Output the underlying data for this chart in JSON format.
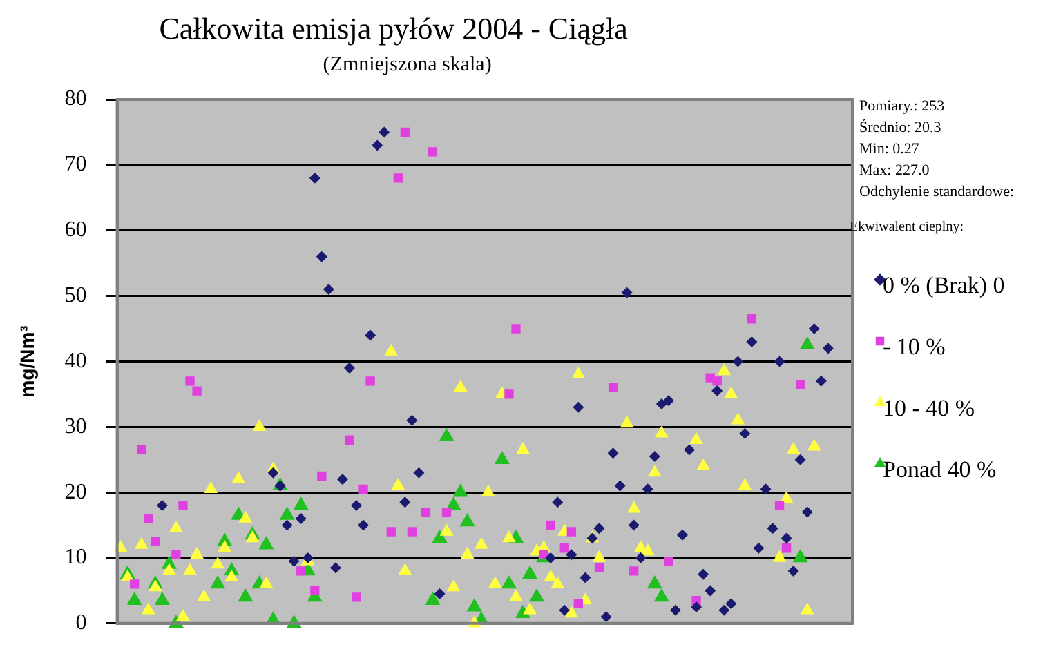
{
  "chart_data": {
    "type": "scatter",
    "title": "Całkowita emisja pyłów 2004 - Ciągła",
    "subtitle": "(Zmniejszona skala)",
    "ylabel": "mg/Nm³",
    "legend_title": "Ekwiwalent cieplny:",
    "legend": "right",
    "grid": "y",
    "tick_labels": "y",
    "annotations": [
      "Pomiary.: 253",
      "Średnio: 20.3",
      "Min: 0.27",
      "Max: 227.0",
      "Odchylenie standardowe:"
    ],
    "categories": [
      null,
      null,
      null,
      null,
      null,
      null,
      null,
      null,
      null,
      null,
      null,
      null,
      null,
      null,
      null,
      null,
      null,
      null,
      null,
      null,
      null,
      null,
      null,
      null,
      null,
      null,
      null,
      null,
      null,
      null,
      null,
      null,
      null,
      null,
      null,
      null,
      null,
      null,
      null,
      null,
      null,
      null,
      null,
      null,
      null,
      null,
      null,
      null,
      null,
      null,
      null,
      null,
      null,
      null,
      null,
      null,
      null,
      null,
      null,
      null,
      null,
      null,
      null,
      null,
      null,
      null,
      null,
      null,
      null,
      null,
      null,
      null,
      null,
      null,
      null,
      null,
      null,
      null,
      null,
      null,
      null,
      null,
      null,
      null,
      null,
      null,
      null,
      null,
      null,
      null,
      null,
      null,
      null,
      null,
      null,
      null,
      null,
      null,
      null,
      null,
      null,
      null,
      null,
      null,
      null,
      null
    ],
    "ylim": [
      0,
      80
    ],
    "yticks": [
      0,
      10,
      20,
      30,
      40,
      50,
      60,
      70,
      80
    ],
    "series": [
      {
        "name": "0 % (Brak) 0",
        "color": "#1a1a6e",
        "marker": "diamond",
        "values": [
          null,
          null,
          null,
          null,
          null,
          null,
          18,
          null,
          null,
          null,
          null,
          null,
          null,
          null,
          null,
          null,
          null,
          null,
          null,
          null,
          null,
          null,
          23,
          21,
          15,
          9.5,
          16,
          10,
          68,
          56,
          51,
          8.5,
          22,
          39,
          18,
          15,
          44,
          73,
          75,
          null,
          null,
          18.5,
          31,
          23,
          null,
          null,
          4.5,
          null,
          null,
          null,
          null,
          null,
          null,
          null,
          null,
          null,
          null,
          null,
          null,
          null,
          null,
          null,
          10,
          18.5,
          2,
          10.5,
          33,
          7,
          13,
          14.5,
          1,
          26,
          21,
          50.5,
          15,
          10,
          20.5,
          25.5,
          33.5,
          34,
          2,
          13.5,
          26.5,
          2.5,
          7.5,
          5,
          35.5,
          2,
          3,
          40,
          29,
          43,
          11.5,
          20.5,
          14.5,
          40,
          13,
          8,
          25,
          17,
          45,
          37,
          42,
          null,
          null,
          null
        ]
      },
      {
        "name": "- 10 %",
        "color": "#e040e0",
        "marker": "square",
        "values": [
          null,
          null,
          6,
          26.5,
          16,
          12.5,
          null,
          null,
          10.5,
          18,
          37,
          35.5,
          null,
          null,
          null,
          null,
          null,
          null,
          null,
          null,
          null,
          null,
          null,
          null,
          null,
          null,
          8,
          null,
          5,
          22.5,
          null,
          null,
          null,
          28,
          4,
          20.5,
          37,
          null,
          null,
          14,
          68,
          75,
          14,
          null,
          17,
          72,
          null,
          17,
          null,
          null,
          null,
          null,
          null,
          null,
          null,
          null,
          35,
          45,
          null,
          null,
          null,
          10.5,
          15,
          null,
          11.5,
          14,
          3,
          null,
          null,
          8.5,
          null,
          36,
          null,
          null,
          8,
          null,
          null,
          null,
          null,
          9.5,
          null,
          null,
          null,
          3.5,
          null,
          37.5,
          37,
          null,
          null,
          null,
          null,
          46.5,
          null,
          null,
          null,
          18,
          11.5,
          null,
          36.5,
          null,
          null,
          null,
          null,
          null,
          null,
          null
        ]
      },
      {
        "name": "10 - 40 %",
        "color": "#ffff40",
        "marker": "triangle",
        "values": [
          11.5,
          7,
          null,
          12,
          2,
          5.5,
          null,
          8,
          14.5,
          1,
          8,
          10.5,
          4,
          20.5,
          9,
          11.5,
          7,
          22,
          16,
          13,
          30,
          6,
          23.5,
          null,
          null,
          null,
          null,
          9.5,
          null,
          null,
          null,
          null,
          null,
          null,
          null,
          null,
          null,
          null,
          null,
          41.5,
          21,
          8,
          null,
          null,
          null,
          null,
          null,
          14,
          5.5,
          36,
          10.5,
          0,
          12,
          20,
          6,
          35,
          13,
          4,
          26.5,
          2,
          11,
          11.5,
          7,
          6,
          14,
          1.5,
          38,
          3.5,
          13,
          10,
          null,
          null,
          null,
          30.5,
          17.5,
          11.5,
          11,
          23,
          29,
          null,
          null,
          null,
          null,
          28,
          24,
          null,
          null,
          38.5,
          35,
          31,
          21,
          null,
          null,
          null,
          null,
          10,
          19,
          26.5,
          null,
          2,
          27,
          null,
          null,
          null,
          null,
          null
        ]
      },
      {
        "name": "Ponad 40 %",
        "color": "#20c020",
        "marker": "triangle",
        "values": [
          null,
          7.5,
          3.5,
          null,
          null,
          6,
          3.5,
          9,
          0,
          null,
          null,
          null,
          null,
          null,
          6,
          12.5,
          8,
          16.5,
          4,
          13.5,
          6,
          12,
          0.5,
          21,
          16.5,
          0,
          18,
          8,
          4,
          null,
          null,
          null,
          null,
          null,
          null,
          null,
          null,
          null,
          null,
          null,
          null,
          null,
          null,
          null,
          null,
          3.5,
          13,
          28.5,
          18,
          20,
          15.5,
          2.5,
          0.5,
          null,
          null,
          25,
          6,
          13,
          1.5,
          7.5,
          4,
          10,
          null,
          null,
          null,
          null,
          null,
          null,
          null,
          null,
          null,
          null,
          null,
          null,
          null,
          null,
          null,
          6,
          4,
          null,
          null,
          null,
          null,
          null,
          null,
          null,
          null,
          null,
          null,
          null,
          null,
          null,
          null,
          null,
          null,
          null,
          null,
          null,
          10,
          42.5,
          null,
          null,
          null,
          null,
          null,
          null
        ]
      }
    ]
  }
}
